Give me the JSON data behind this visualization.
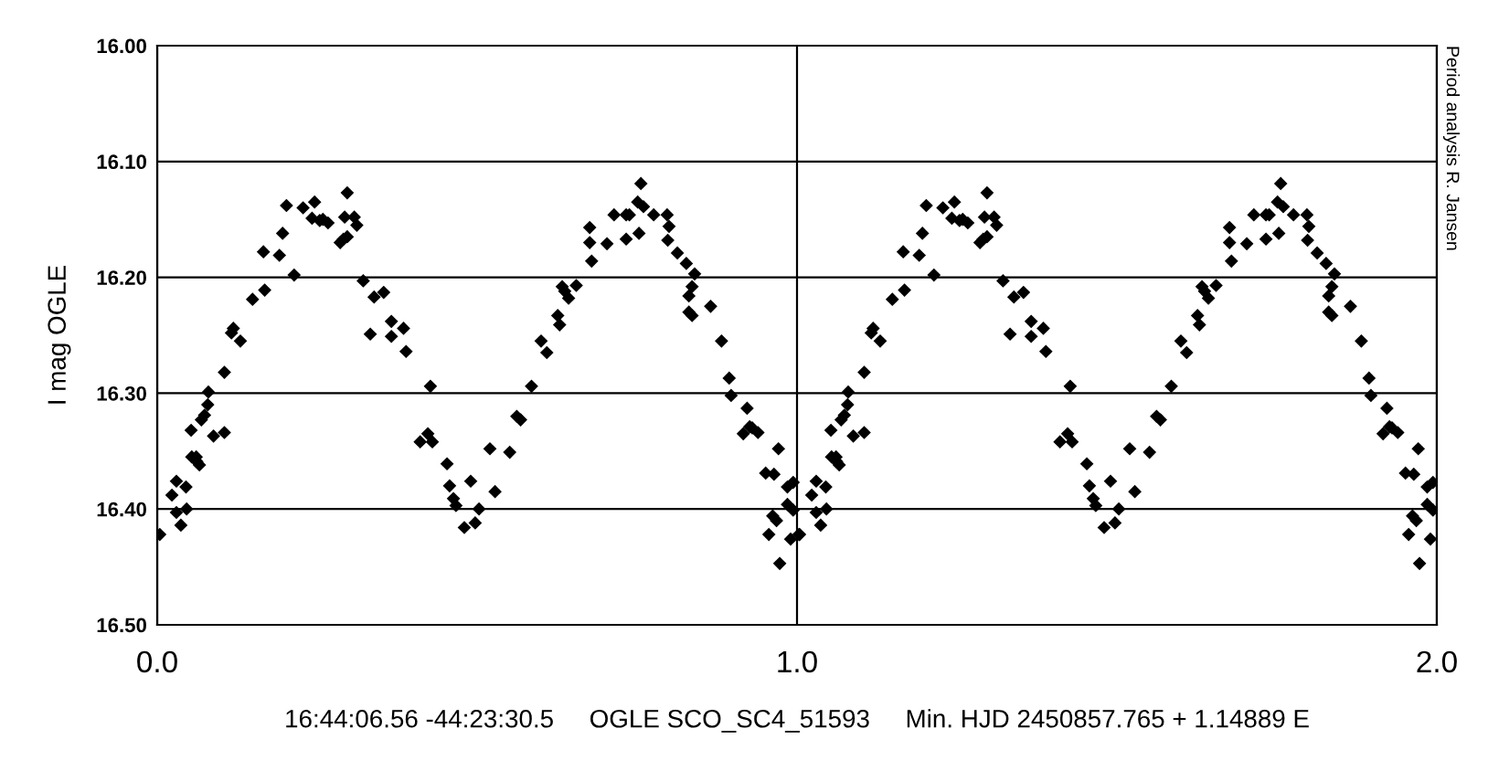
{
  "chart_data": {
    "type": "scatter",
    "xlabel": "16:44:06.56 -44:23:30.5     OGLE SCO_SC4_51593     Min. HJD 2450857.765 + 1.14889 E",
    "ylabel": "I mag OGLE",
    "annotations": [
      "Period analysis R. Jansen"
    ],
    "xlim": [
      0,
      2
    ],
    "xticks": [
      {
        "value": 0,
        "label": "0.0"
      },
      {
        "value": 1,
        "label": "1.0"
      },
      {
        "value": 2,
        "label": "2.0"
      }
    ],
    "ylim": [
      16.5,
      16.0
    ],
    "yticks": [
      {
        "value": 16.0,
        "label": "16.00"
      },
      {
        "value": 16.1,
        "label": "16.10"
      },
      {
        "value": 16.2,
        "label": "16.20"
      },
      {
        "value": 16.3,
        "label": "16.30"
      },
      {
        "value": 16.4,
        "label": "16.40"
      },
      {
        "value": 16.5,
        "label": "16.50"
      }
    ],
    "grid": true,
    "marker": "diamond",
    "series": [
      {
        "color": "#000000",
        "x": [
          0.004,
          0.023,
          0.03,
          0.045,
          0.03,
          0.037,
          0.046,
          0.053,
          0.054,
          0.061,
          0.066,
          0.062,
          0.069,
          0.074,
          0.079,
          0.08,
          0.088,
          0.105,
          0.105,
          0.116,
          0.119,
          0.13,
          0.149,
          0.168,
          0.166,
          0.191,
          0.196,
          0.202,
          0.214,
          0.228,
          0.246,
          0.242,
          0.254,
          0.259,
          0.267,
          0.286,
          0.291,
          0.297,
          0.297,
          0.293,
          0.308,
          0.312,
          0.322,
          0.339,
          0.354,
          0.366,
          0.385,
          0.333,
          0.366,
          0.389,
          0.427,
          0.411,
          0.423,
          0.43,
          0.453,
          0.457,
          0.463,
          0.467,
          0.49,
          0.48,
          0.497,
          0.503,
          0.52,
          0.528,
          0.551,
          0.562,
          0.568,
          0.585,
          0.6,
          0.609,
          0.626,
          0.629,
          0.633,
          0.637,
          0.643,
          0.655,
          0.676,
          0.676,
          0.679,
          0.703,
          0.714,
          0.733,
          0.738,
          0.733,
          0.753,
          0.751,
          0.76,
          0.756,
          0.776,
          0.797,
          0.8,
          0.798,
          0.813,
          0.827,
          0.84,
          0.836,
          0.831,
          0.831,
          0.836,
          0.865,
          0.882,
          0.894,
          0.897,
          0.922,
          0.926,
          0.93,
          0.939,
          0.916,
          0.971,
          0.951,
          0.964,
          0.962,
          0.968,
          0.956,
          0.973,
          0.99,
          0.985,
          0.994,
          0.985,
          0.994,
          1.003,
          1.004,
          1.023,
          1.03,
          1.045,
          1.03,
          1.037,
          1.046,
          1.053,
          1.054,
          1.061,
          1.066,
          1.062,
          1.069,
          1.074,
          1.079,
          1.08,
          1.088,
          1.105,
          1.105,
          1.116,
          1.119,
          1.13,
          1.149,
          1.168,
          1.166,
          1.191,
          1.196,
          1.202,
          1.214,
          1.228,
          1.246,
          1.242,
          1.254,
          1.259,
          1.267,
          1.286,
          1.291,
          1.297,
          1.297,
          1.293,
          1.308,
          1.312,
          1.322,
          1.339,
          1.354,
          1.366,
          1.385,
          1.333,
          1.366,
          1.389,
          1.427,
          1.411,
          1.423,
          1.43,
          1.453,
          1.457,
          1.463,
          1.467,
          1.49,
          1.48,
          1.497,
          1.503,
          1.52,
          1.528,
          1.551,
          1.562,
          1.568,
          1.585,
          1.6,
          1.609,
          1.626,
          1.629,
          1.633,
          1.637,
          1.643,
          1.655,
          1.676,
          1.676,
          1.679,
          1.703,
          1.714,
          1.733,
          1.738,
          1.733,
          1.753,
          1.751,
          1.76,
          1.756,
          1.776,
          1.797,
          1.8,
          1.798,
          1.813,
          1.827,
          1.84,
          1.836,
          1.831,
          1.831,
          1.836,
          1.865,
          1.882,
          1.894,
          1.897,
          1.922,
          1.926,
          1.93,
          1.939,
          1.916,
          1.971,
          1.951,
          1.964,
          1.962,
          1.968,
          1.956,
          1.973,
          1.99,
          1.985,
          1.994,
          1.985,
          1.994
        ],
        "values": [
          16.422,
          16.388,
          16.376,
          16.381,
          16.403,
          16.414,
          16.4,
          16.332,
          16.355,
          16.355,
          16.362,
          16.359,
          16.323,
          16.319,
          16.31,
          16.299,
          16.337,
          16.334,
          16.282,
          16.248,
          16.244,
          16.255,
          16.219,
          16.211,
          16.178,
          16.181,
          16.162,
          16.138,
          16.198,
          16.14,
          16.135,
          16.149,
          16.151,
          16.15,
          16.153,
          16.17,
          16.167,
          16.165,
          16.127,
          16.148,
          16.148,
          16.155,
          16.203,
          16.217,
          16.213,
          16.238,
          16.244,
          16.249,
          16.251,
          16.264,
          16.294,
          16.342,
          16.335,
          16.342,
          16.361,
          16.38,
          16.391,
          16.397,
          16.376,
          16.416,
          16.412,
          16.4,
          16.348,
          16.385,
          16.351,
          16.32,
          16.323,
          16.294,
          16.255,
          16.265,
          16.233,
          16.241,
          16.208,
          16.212,
          16.218,
          16.207,
          16.157,
          16.17,
          16.186,
          16.171,
          16.146,
          16.146,
          16.146,
          16.167,
          16.162,
          16.135,
          16.139,
          16.119,
          16.146,
          16.146,
          16.156,
          16.168,
          16.179,
          16.188,
          16.197,
          16.208,
          16.216,
          16.23,
          16.233,
          16.225,
          16.255,
          16.287,
          16.302,
          16.313,
          16.329,
          16.33,
          16.334,
          16.335,
          16.348,
          16.369,
          16.37,
          16.406,
          16.41,
          16.422,
          16.447,
          16.426,
          16.381,
          16.377,
          16.396,
          16.401,
          16.422,
          16.422,
          16.388,
          16.376,
          16.381,
          16.403,
          16.414,
          16.4,
          16.332,
          16.355,
          16.355,
          16.362,
          16.359,
          16.323,
          16.319,
          16.31,
          16.299,
          16.337,
          16.334,
          16.282,
          16.248,
          16.244,
          16.255,
          16.219,
          16.211,
          16.178,
          16.181,
          16.162,
          16.138,
          16.198,
          16.14,
          16.135,
          16.149,
          16.151,
          16.15,
          16.153,
          16.17,
          16.167,
          16.165,
          16.127,
          16.148,
          16.148,
          16.155,
          16.203,
          16.217,
          16.213,
          16.238,
          16.244,
          16.249,
          16.251,
          16.264,
          16.294,
          16.342,
          16.335,
          16.342,
          16.361,
          16.38,
          16.391,
          16.397,
          16.376,
          16.416,
          16.412,
          16.4,
          16.348,
          16.385,
          16.351,
          16.32,
          16.323,
          16.294,
          16.255,
          16.265,
          16.233,
          16.241,
          16.208,
          16.212,
          16.218,
          16.207,
          16.157,
          16.17,
          16.186,
          16.171,
          16.146,
          16.146,
          16.146,
          16.167,
          16.162,
          16.135,
          16.139,
          16.119,
          16.146,
          16.146,
          16.156,
          16.168,
          16.179,
          16.188,
          16.197,
          16.208,
          16.216,
          16.23,
          16.233,
          16.225,
          16.255,
          16.287,
          16.302,
          16.313,
          16.329,
          16.33,
          16.334,
          16.335,
          16.348,
          16.369,
          16.37,
          16.406,
          16.41,
          16.422,
          16.447,
          16.426,
          16.381,
          16.377,
          16.396,
          16.401
        ]
      }
    ]
  }
}
